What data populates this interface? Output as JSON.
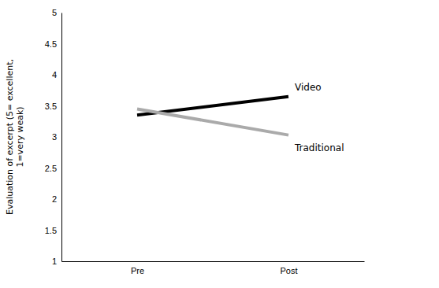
{
  "chart_data": {
    "type": "line",
    "categories": [
      "Pre",
      "Post"
    ],
    "series": [
      {
        "name": "Video",
        "color": "#000000",
        "values": [
          3.35,
          3.65
        ]
      },
      {
        "name": "Traditional",
        "color": "#aaaaaa",
        "values": [
          3.45,
          3.03
        ]
      }
    ],
    "y_label": "Evaluation of excerpt (5= excellent,\n1=very weak)",
    "ylim": [
      1,
      5
    ],
    "yticks": [
      1,
      1.5,
      2,
      2.5,
      3,
      3.5,
      4,
      4.5,
      5
    ],
    "grid": false
  }
}
